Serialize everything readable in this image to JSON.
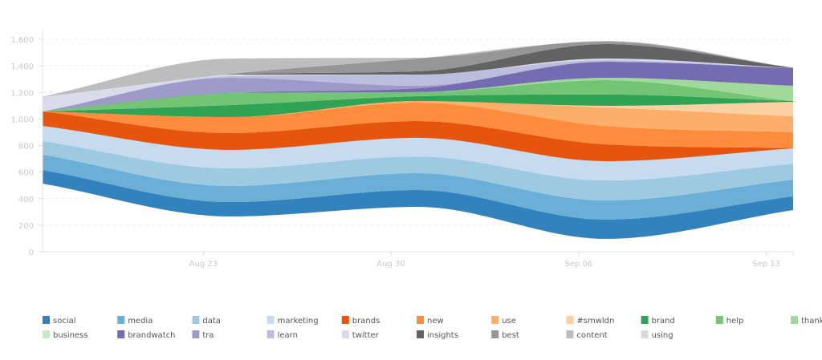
{
  "chart_data": {
    "type": "area",
    "subtype": "streamgraph",
    "title": "",
    "xlabel": "",
    "ylabel": "",
    "x": [
      "2013-08-17",
      "2013-08-24",
      "2013-08-31",
      "2013-09-07",
      "2013-09-14"
    ],
    "xlim": [
      "2013-08-17",
      "2013-09-14"
    ],
    "ylim": [
      0,
      1600
    ],
    "y_ticks": [
      "0",
      "200",
      "400",
      "600",
      "800",
      "1,000",
      "1,200",
      "1,400",
      "1,600"
    ],
    "x_ticks": [
      {
        "date": "2013-08-23",
        "label": "Aug 23"
      },
      {
        "date": "2013-08-30",
        "label": "Aug 30"
      },
      {
        "date": "2013-09-06",
        "label": "Sep 06"
      },
      {
        "date": "2013-09-13",
        "label": "Sep 13"
      }
    ],
    "grid": "horizontal dashed",
    "legend_position": "bottom",
    "stream_bottom": [
      513,
      266,
      338,
      97,
      314
    ],
    "series": [
      {
        "name": "social",
        "color": "#3182bd",
        "values": [
          103,
          108,
          127,
          145,
          103
        ]
      },
      {
        "name": "media",
        "color": "#6baed6",
        "values": [
          115,
          121,
          127,
          144,
          126
        ]
      },
      {
        "name": "data",
        "color": "#9ecae1",
        "values": [
          102,
          133,
          126,
          151,
          121
        ]
      },
      {
        "name": "marketing",
        "color": "#c6dbef",
        "values": [
          115,
          139,
          140,
          145,
          115
        ]
      },
      {
        "name": "brands",
        "color": "#e6550d",
        "values": [
          109,
          127,
          126,
          127,
          3
        ]
      },
      {
        "name": "new",
        "color": "#fd8d3c",
        "values": [
          0,
          120,
          139,
          139,
          118
        ]
      },
      {
        "name": "use",
        "color": "#fdae6b",
        "values": [
          0,
          0,
          12,
          139,
          120
        ]
      },
      {
        "name": "#smwldn",
        "color": "#fdd0a2",
        "values": [
          0,
          0,
          0,
          12,
          109
        ]
      },
      {
        "name": "brand",
        "color": "#31a354",
        "values": [
          0,
          91,
          36,
          85,
          6
        ]
      },
      {
        "name": "help",
        "color": "#74c476",
        "values": [
          0,
          91,
          31,
          108,
          0
        ]
      },
      {
        "name": "thanks",
        "color": "#a1d99b",
        "values": [
          0,
          0,
          0,
          18,
          115
        ]
      },
      {
        "name": "business",
        "color": "#c7e9c0",
        "values": [
          0,
          0,
          0,
          0,
          0
        ]
      },
      {
        "name": "brandwatch",
        "color": "#756bb1",
        "values": [
          0,
          0,
          30,
          121,
          133
        ]
      },
      {
        "name": "tra",
        "color": "#9e9ac8",
        "values": [
          0,
          114,
          18,
          0,
          0
        ]
      },
      {
        "name": "learn",
        "color": "#bcbddc",
        "values": [
          0,
          12,
          84,
          12,
          0
        ]
      },
      {
        "name": "twitter",
        "color": "#dadaeb",
        "values": [
          108,
          12,
          0,
          12,
          0
        ]
      },
      {
        "name": "insights",
        "color": "#636363",
        "values": [
          0,
          3,
          25,
          109,
          3
        ]
      },
      {
        "name": "best",
        "color": "#969696",
        "values": [
          0,
          3,
          96,
          18,
          0
        ]
      },
      {
        "name": "content",
        "color": "#bdbdbd",
        "values": [
          3,
          115,
          6,
          6,
          0
        ]
      },
      {
        "name": "using",
        "color": "#d9d9d9",
        "values": [
          0,
          0,
          0,
          0,
          0
        ]
      }
    ]
  }
}
